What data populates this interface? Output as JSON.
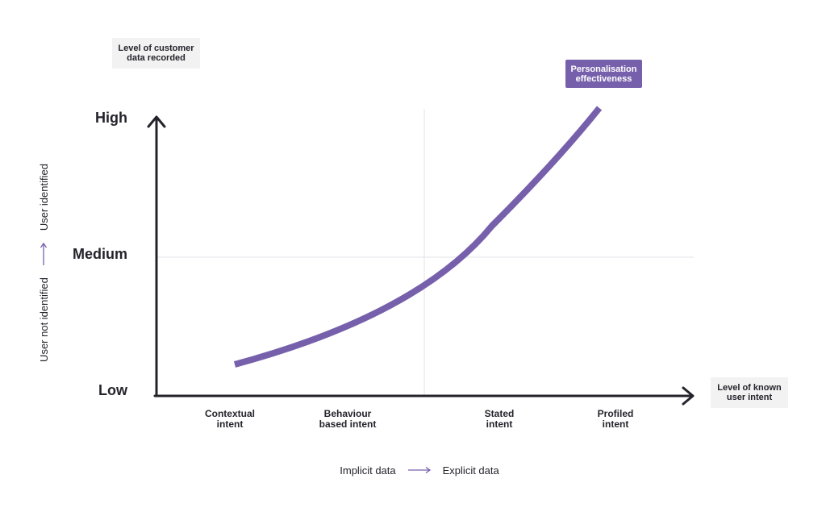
{
  "y_axis": {
    "title": [
      "Level of customer",
      "data recorded"
    ],
    "levels": [
      "High",
      "Medium",
      "Low"
    ]
  },
  "x_axis": {
    "title": [
      "Level of known",
      "user intent"
    ],
    "categories": [
      [
        "Contextual",
        "intent"
      ],
      [
        "Behaviour",
        "based intent"
      ],
      [
        "Stated",
        "intent"
      ],
      [
        "Profiled",
        "intent"
      ]
    ]
  },
  "curve": {
    "label": [
      "Personalisation",
      "effectiveness"
    ],
    "color": "#7760ab"
  },
  "data_axis": {
    "left": "Implicit data",
    "right": "Explicit data",
    "arrow_color": "#7760ab"
  },
  "identity_axis": {
    "bottom": "User not identified",
    "top": "User identified"
  },
  "colors": {
    "axis": "#24232b",
    "grid": "#e3e3ea",
    "label_bg": "#f2f2f2"
  }
}
